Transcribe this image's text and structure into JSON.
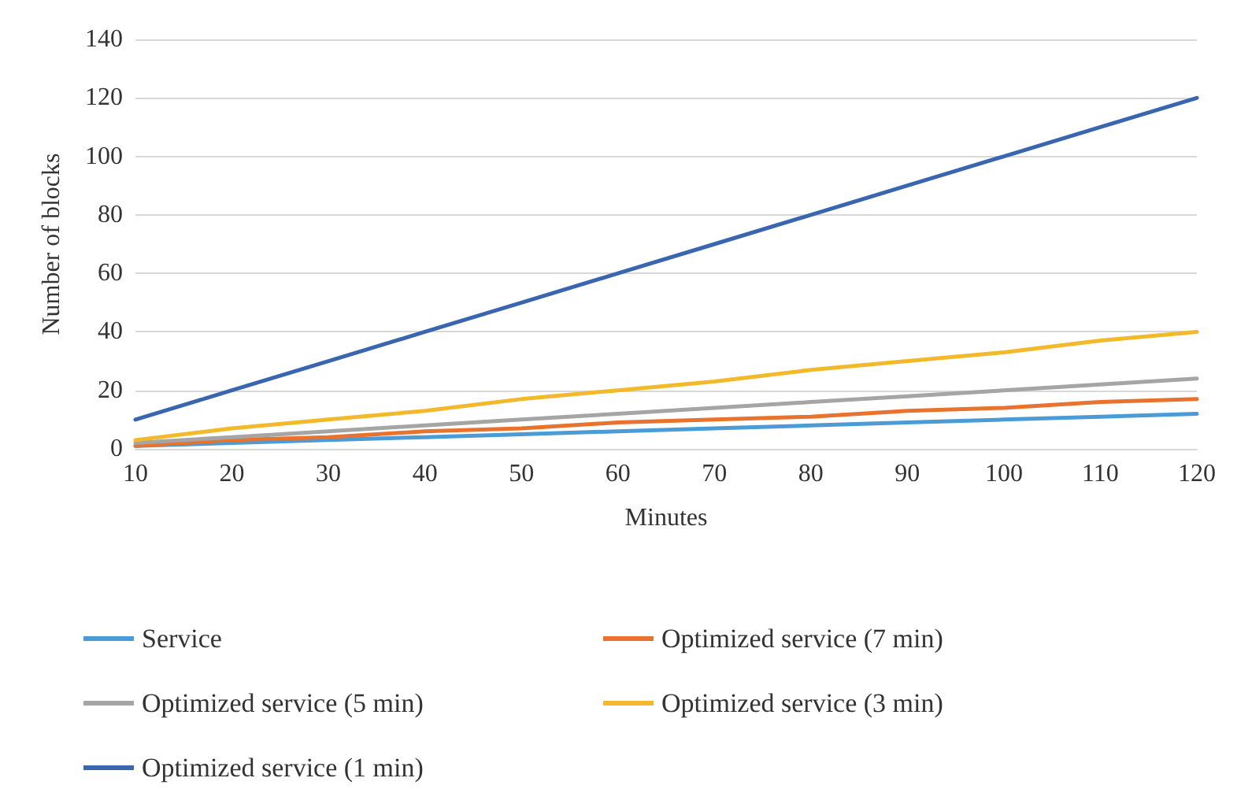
{
  "chart_data": {
    "type": "line",
    "xlabel": "Minutes",
    "ylabel": "Number of blocks",
    "categories": [
      "10",
      "20",
      "30",
      "40",
      "50",
      "60",
      "70",
      "80",
      "90",
      "100",
      "110",
      "120"
    ],
    "series": [
      {
        "name": "Service",
        "color": "#4a9bd6",
        "values": [
          1,
          2,
          3,
          4,
          5,
          6,
          7,
          8,
          9,
          10,
          11,
          12
        ]
      },
      {
        "name": "Optimized service (7 min)",
        "color": "#e8732e",
        "values": [
          1,
          3,
          4,
          6,
          7,
          9,
          10,
          11,
          13,
          14,
          16,
          17
        ]
      },
      {
        "name": "Optimized service (5 min)",
        "color": "#a5a5a5",
        "values": [
          2,
          4,
          6,
          8,
          10,
          12,
          14,
          16,
          18,
          20,
          22,
          24
        ]
      },
      {
        "name": "Optimized service (3 min)",
        "color": "#f2b92a",
        "values": [
          3,
          7,
          10,
          13,
          17,
          20,
          23,
          27,
          30,
          33,
          37,
          40
        ]
      },
      {
        "name": "Optimized service (1 min)",
        "color": "#3a66b0",
        "values": [
          10,
          20,
          30,
          40,
          50,
          60,
          70,
          80,
          90,
          100,
          110,
          120
        ]
      }
    ],
    "ylim": [
      0,
      140
    ],
    "yticks": [
      0,
      20,
      40,
      60,
      80,
      100,
      120,
      140
    ],
    "grid": "y",
    "legend": "bottom",
    "marker": "none",
    "line_style": "solid"
  }
}
